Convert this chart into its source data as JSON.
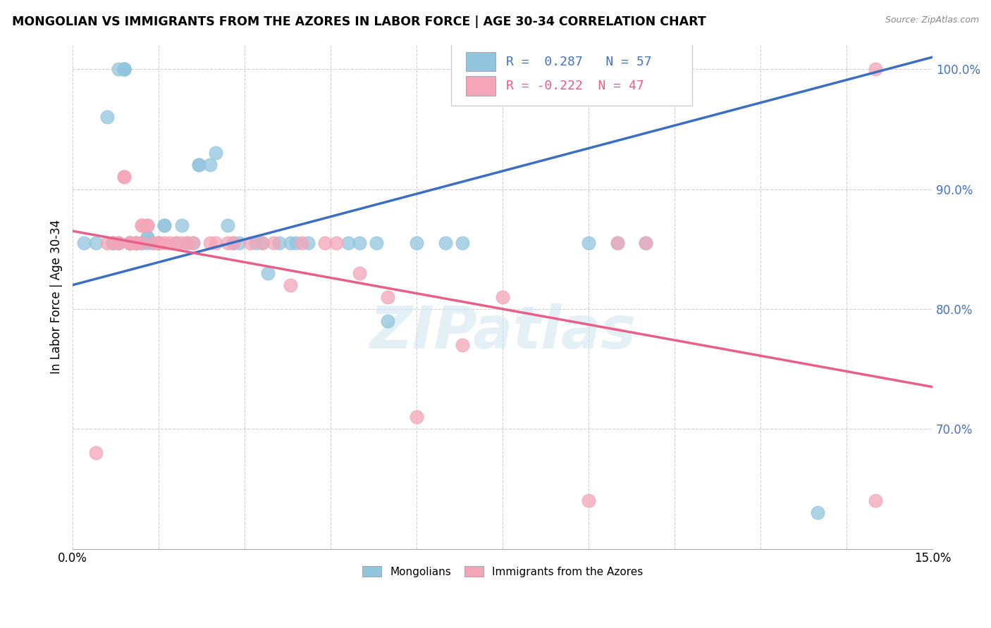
{
  "title": "MONGOLIAN VS IMMIGRANTS FROM THE AZORES IN LABOR FORCE | AGE 30-34 CORRELATION CHART",
  "source": "Source: ZipAtlas.com",
  "ylabel": "In Labor Force | Age 30-34",
  "xlim": [
    0.0,
    0.15
  ],
  "ylim": [
    0.6,
    1.02
  ],
  "yticks": [
    0.7,
    0.8,
    0.9,
    1.0
  ],
  "ytick_labels": [
    "70.0%",
    "80.0%",
    "90.0%",
    "100.0%"
  ],
  "xticks": [
    0.0,
    0.015,
    0.03,
    0.045,
    0.06,
    0.075,
    0.09,
    0.105,
    0.12,
    0.135,
    0.15
  ],
  "xtick_labels": [
    "0.0%",
    "",
    "",
    "",
    "",
    "",
    "",
    "",
    "",
    "",
    "15.0%"
  ],
  "legend_label1": "Mongolians",
  "legend_label2": "Immigrants from the Azores",
  "r1": 0.287,
  "n1": 57,
  "r2": -0.222,
  "n2": 47,
  "blue_color": "#92c5de",
  "pink_color": "#f4a5b8",
  "blue_line_color": "#3a6fc4",
  "pink_line_color": "#e8608a",
  "watermark": "ZIPatlas",
  "blue_scatter_x": [
    0.002,
    0.004,
    0.006,
    0.007,
    0.007,
    0.008,
    0.008,
    0.009,
    0.009,
    0.009,
    0.009,
    0.01,
    0.01,
    0.01,
    0.01,
    0.011,
    0.011,
    0.011,
    0.012,
    0.012,
    0.013,
    0.013,
    0.013,
    0.014,
    0.015,
    0.015,
    0.016,
    0.016,
    0.018,
    0.019,
    0.02,
    0.021,
    0.022,
    0.022,
    0.024,
    0.025,
    0.027,
    0.028,
    0.029,
    0.032,
    0.033,
    0.034,
    0.036,
    0.038,
    0.039,
    0.041,
    0.048,
    0.05,
    0.053,
    0.055,
    0.06,
    0.065,
    0.068,
    0.09,
    0.095,
    0.1,
    0.13
  ],
  "blue_scatter_y": [
    0.855,
    0.855,
    0.96,
    0.855,
    0.855,
    0.855,
    1.0,
    1.0,
    1.0,
    1.0,
    1.0,
    0.855,
    0.855,
    0.855,
    0.855,
    0.855,
    0.855,
    0.855,
    0.855,
    0.855,
    0.86,
    0.86,
    0.855,
    0.855,
    0.855,
    0.855,
    0.87,
    0.87,
    0.855,
    0.87,
    0.855,
    0.855,
    0.92,
    0.92,
    0.92,
    0.93,
    0.87,
    0.855,
    0.855,
    0.855,
    0.855,
    0.83,
    0.855,
    0.855,
    0.855,
    0.855,
    0.855,
    0.855,
    0.855,
    0.79,
    0.855,
    0.855,
    0.855,
    0.855,
    0.855,
    0.855,
    0.63
  ],
  "pink_scatter_x": [
    0.004,
    0.006,
    0.007,
    0.008,
    0.008,
    0.009,
    0.009,
    0.01,
    0.01,
    0.01,
    0.011,
    0.011,
    0.012,
    0.012,
    0.012,
    0.013,
    0.013,
    0.014,
    0.015,
    0.015,
    0.016,
    0.017,
    0.018,
    0.019,
    0.02,
    0.021,
    0.024,
    0.025,
    0.027,
    0.028,
    0.031,
    0.033,
    0.035,
    0.038,
    0.04,
    0.044,
    0.046,
    0.05,
    0.055,
    0.06,
    0.068,
    0.075,
    0.09,
    0.095,
    0.1,
    0.14,
    0.14
  ],
  "pink_scatter_y": [
    0.68,
    0.855,
    0.855,
    0.855,
    0.855,
    0.91,
    0.91,
    0.855,
    0.855,
    0.855,
    0.855,
    0.855,
    0.87,
    0.87,
    0.855,
    0.87,
    0.87,
    0.855,
    0.855,
    0.855,
    0.855,
    0.855,
    0.855,
    0.855,
    0.855,
    0.855,
    0.855,
    0.855,
    0.855,
    0.855,
    0.855,
    0.855,
    0.855,
    0.82,
    0.855,
    0.855,
    0.855,
    0.83,
    0.81,
    0.71,
    0.77,
    0.81,
    0.64,
    0.855,
    0.855,
    0.64,
    1.0
  ],
  "blue_line_x0": 0.0,
  "blue_line_y0": 0.82,
  "blue_line_x1": 0.15,
  "blue_line_y1": 1.01,
  "pink_line_x0": 0.0,
  "pink_line_y0": 0.865,
  "pink_line_x1": 0.15,
  "pink_line_y1": 0.735
}
